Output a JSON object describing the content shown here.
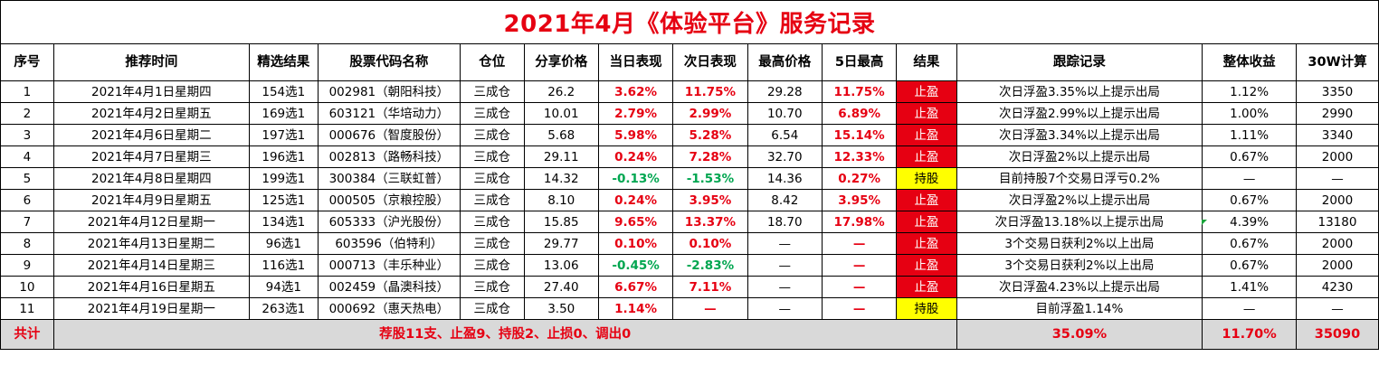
{
  "title": "2021年4月《体验平台》服务记录",
  "headers": [
    "序号",
    "推荐时间",
    "精选结果",
    "股票代码名称",
    "仓位",
    "分享价格",
    "当日表现",
    "次日表现",
    "最高价格",
    "5日最高",
    "结果",
    "跟踪记录",
    "整体收益",
    "30W计算"
  ],
  "rows": [
    {
      "no": "1",
      "date": "2021年4月1日星期四",
      "pick": "154选1",
      "stock": "002981（朝阳科技）",
      "position": "三成仓",
      "price": "26.2",
      "day": "3.62%",
      "day_color": "red",
      "next": "11.75%",
      "next_color": "red",
      "high": "29.28",
      "high5": "11.75%",
      "result": "止盈",
      "result_type": "stop",
      "track": "次日浮盈3.35%以上提示出局",
      "gain": "1.12%",
      "calc": "3350"
    },
    {
      "no": "2",
      "date": "2021年4月2日星期五",
      "pick": "169选1",
      "stock": "603121（华培动力）",
      "position": "三成仓",
      "price": "10.01",
      "day": "2.79%",
      "day_color": "red",
      "next": "2.99%",
      "next_color": "red",
      "high": "10.70",
      "high5": "6.89%",
      "result": "止盈",
      "result_type": "stop",
      "track": "次日浮盈2.99%以上提示出局",
      "gain": "1.00%",
      "calc": "2990"
    },
    {
      "no": "3",
      "date": "2021年4月6日星期二",
      "pick": "197选1",
      "stock": "000676（智度股份）",
      "position": "三成仓",
      "price": "5.68",
      "day": "5.98%",
      "day_color": "red",
      "next": "5.28%",
      "next_color": "red",
      "high": "6.54",
      "high5": "15.14%",
      "result": "止盈",
      "result_type": "stop",
      "track": "次日浮盈3.34%以上提示出局",
      "gain": "1.11%",
      "calc": "3340"
    },
    {
      "no": "4",
      "date": "2021年4月7日星期三",
      "pick": "196选1",
      "stock": "002813（路畅科技）",
      "position": "三成仓",
      "price": "29.11",
      "day": "0.24%",
      "day_color": "red",
      "next": "7.28%",
      "next_color": "red",
      "high": "32.70",
      "high5": "12.33%",
      "result": "止盈",
      "result_type": "stop",
      "track": "次日浮盈2%以上提示出局",
      "gain": "0.67%",
      "calc": "2000"
    },
    {
      "no": "5",
      "date": "2021年4月8日星期四",
      "pick": "199选1",
      "stock": "300384（三联虹普）",
      "position": "三成仓",
      "price": "14.32",
      "day": "-0.13%",
      "day_color": "green",
      "next": "-1.53%",
      "next_color": "green",
      "high": "14.36",
      "high5": "0.27%",
      "result": "持股",
      "result_type": "hold",
      "track": "目前持股7个交易日浮亏0.2%",
      "gain": "—",
      "calc": "—"
    },
    {
      "no": "6",
      "date": "2021年4月9日星期五",
      "pick": "125选1",
      "stock": "000505（京粮控股）",
      "position": "三成仓",
      "price": "8.10",
      "day": "0.24%",
      "day_color": "red",
      "next": "3.95%",
      "next_color": "red",
      "high": "8.42",
      "high5": "3.95%",
      "result": "止盈",
      "result_type": "stop",
      "track": "次日浮盈2%以上提示出局",
      "gain": "0.67%",
      "calc": "2000"
    },
    {
      "no": "7",
      "date": "2021年4月12日星期一",
      "pick": "134选1",
      "stock": "605333（沪光股份）",
      "position": "三成仓",
      "price": "15.85",
      "day": "9.65%",
      "day_color": "red",
      "next": "13.37%",
      "next_color": "red",
      "high": "18.70",
      "high5": "17.98%",
      "result": "止盈",
      "result_type": "stop",
      "track": "次日浮盈13.18%以上提示出局",
      "gain": "4.39%",
      "calc": "13180"
    },
    {
      "no": "8",
      "date": "2021年4月13日星期二",
      "pick": "96选1",
      "stock": "603596（伯特利）",
      "position": "三成仓",
      "price": "29.77",
      "day": "0.10%",
      "day_color": "red",
      "next": "0.10%",
      "next_color": "red",
      "high": "—",
      "high5": "—",
      "result": "止盈",
      "result_type": "stop",
      "track": "3个交易日获利2%以上出局",
      "gain": "0.67%",
      "calc": "2000"
    },
    {
      "no": "9",
      "date": "2021年4月14日星期三",
      "pick": "116选1",
      "stock": "000713（丰乐种业）",
      "position": "三成仓",
      "price": "13.06",
      "day": "-0.45%",
      "day_color": "green",
      "next": "-2.83%",
      "next_color": "green",
      "high": "—",
      "high5": "—",
      "result": "止盈",
      "result_type": "stop",
      "track": "3个交易日获利2%以上出局",
      "gain": "0.67%",
      "calc": "2000"
    },
    {
      "no": "10",
      "date": "2021年4月16日星期五",
      "pick": "94选1",
      "stock": "002459（晶澳科技）",
      "position": "三成仓",
      "price": "27.40",
      "day": "6.67%",
      "day_color": "red",
      "next": "7.11%",
      "next_color": "red",
      "high": "—",
      "high5": "—",
      "result": "止盈",
      "result_type": "stop",
      "track": "次日浮盈4.23%以上提示出局",
      "gain": "1.41%",
      "calc": "4230"
    },
    {
      "no": "11",
      "date": "2021年4月19日星期一",
      "pick": "263选1",
      "stock": "000692（惠天热电）",
      "position": "三成仓",
      "price": "3.50",
      "day": "1.14%",
      "day_color": "red",
      "next": "—",
      "next_color": "red",
      "high": "—",
      "high5": "—",
      "result": "持股",
      "result_type": "hold",
      "track": "目前浮盈1.14%",
      "gain": "—",
      "calc": "—"
    }
  ],
  "footer": {
    "label": "共计",
    "summary": "荐股11支、止盈9、持股2、止损0、调出0",
    "total_track": "35.09%",
    "total_gain": "11.70%",
    "total_calc": "35090"
  },
  "colors": {
    "red": "#e60012",
    "green": "#00a650",
    "hold_bg": "#ffff00",
    "stop_bg": "#e60012",
    "footer_bg": "#d9d9d9"
  }
}
